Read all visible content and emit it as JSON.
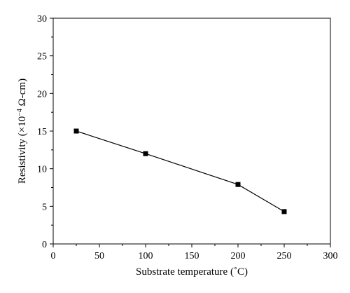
{
  "chart_data": {
    "type": "line",
    "xlabel": "Substrate temperature (˚C)",
    "ylabel_main": "Resistivity (×10",
    "ylabel_exp": "−4",
    "ylabel_unit": " Ω-cm)",
    "xlim": [
      0,
      300
    ],
    "ylim": [
      0,
      30
    ],
    "x_ticks": [
      0,
      50,
      100,
      150,
      200,
      250,
      300
    ],
    "y_ticks": [
      0,
      5,
      10,
      15,
      20,
      25,
      30
    ],
    "grid": false,
    "series": [
      {
        "x": [
          25,
          100,
          200,
          250
        ],
        "y": [
          15.0,
          12.0,
          7.9,
          4.3
        ],
        "marker": "square",
        "color": "#000000"
      }
    ]
  }
}
